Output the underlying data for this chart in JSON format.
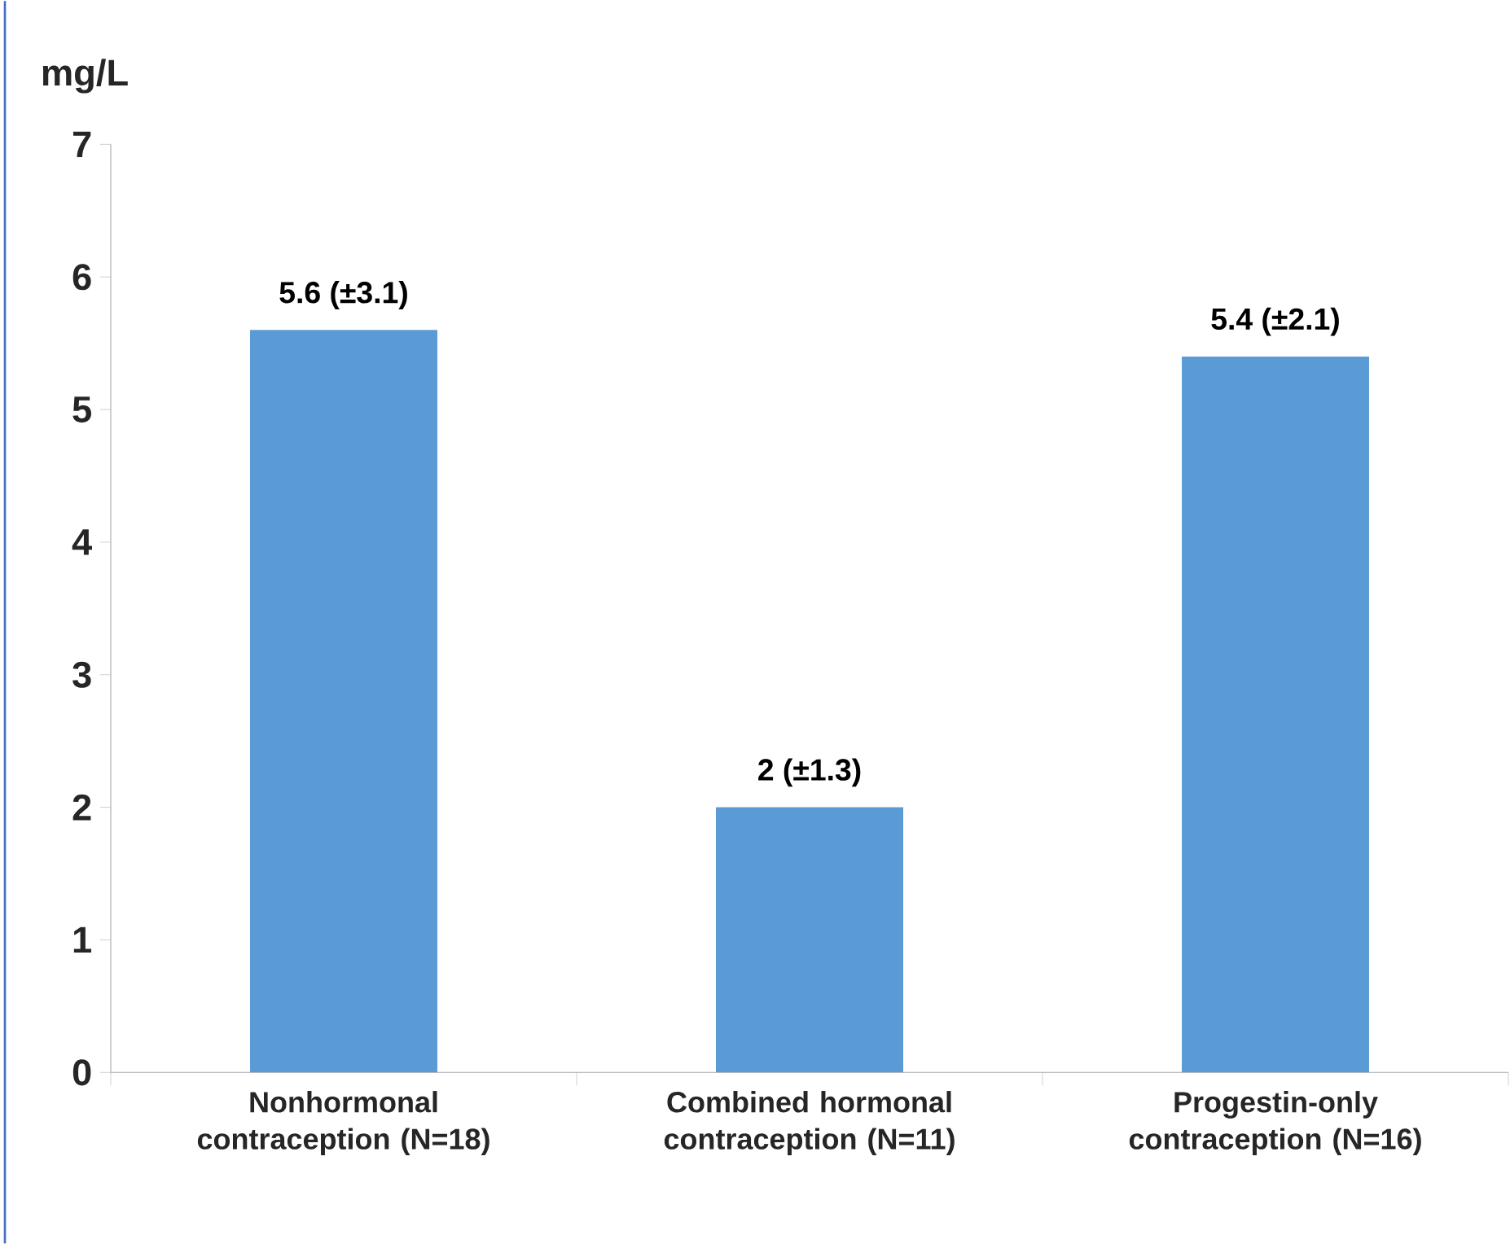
{
  "chart_data": {
    "type": "bar",
    "ylabel": "mg/L",
    "categories": [
      "Nonhormonal contraception (N=18)",
      "Combined hormonal contraception (N=11)",
      "Progestin-only contraception (N=16)"
    ],
    "values": [
      5.6,
      2,
      5.4
    ],
    "value_labels": [
      "5.6 (±3.1)",
      "2 (±1.3)",
      "5.4 (±2.1)"
    ],
    "color": "#5b9bd5",
    "ylim": [
      0,
      7
    ],
    "yticks": [
      0,
      1,
      2,
      3,
      4,
      5,
      6,
      7
    ],
    "grid": false
  }
}
